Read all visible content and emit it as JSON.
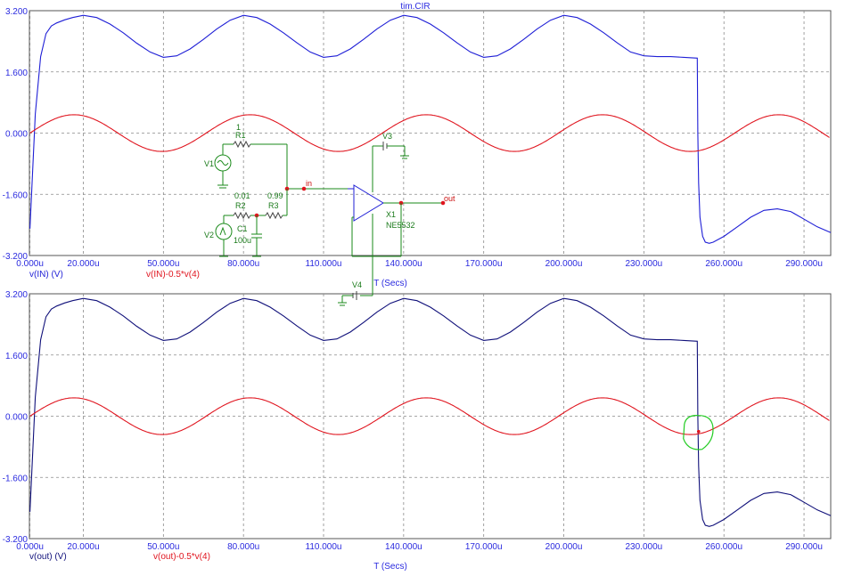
{
  "window_title": "tim.CIR",
  "colors": {
    "axis_text": "#2a2adf",
    "trace_blue": "#1f1fd6",
    "trace_navy": "#10107a",
    "trace_red": "#e0141e",
    "schematic_green": "#1a8a1a",
    "marker_green": "#22cc22",
    "grid": "#8a8a8a"
  },
  "chart_data": [
    {
      "type": "line",
      "title": "tim.CIR",
      "xlabel": "T (Secs)",
      "ylabel": "",
      "xlim": [
        -0.0002,
        0.3
      ],
      "ylim": [
        -3.2,
        3.2
      ],
      "x_tick_labels": [
        "0.000u",
        "20.000u",
        "50.000u",
        "80.000u",
        "110.000u",
        "140.000u",
        "170.000u",
        "200.000u",
        "230.000u",
        "260.000u",
        "290.000u"
      ],
      "x_ticks": [
        0,
        0.02,
        0.05,
        0.08,
        0.11,
        0.14,
        0.17,
        0.2,
        0.23,
        0.26,
        0.29
      ],
      "y_tick_labels": [
        "3.200",
        "1.600",
        "0.000",
        "-1.600",
        "-3.200"
      ],
      "y_ticks": [
        3.2,
        1.6,
        0,
        -1.6,
        -3.2
      ],
      "grid": true,
      "series": [
        {
          "name": "v(IN) (V)",
          "color": "#1f1fd6",
          "x": [
            0,
            0.002,
            0.004,
            0.006,
            0.008,
            0.01,
            0.013,
            0.016,
            0.02,
            0.025,
            0.03,
            0.035,
            0.04,
            0.045,
            0.05,
            0.055,
            0.06,
            0.065,
            0.07,
            0.075,
            0.08,
            0.085,
            0.09,
            0.095,
            0.1,
            0.105,
            0.11,
            0.115,
            0.12,
            0.125,
            0.13,
            0.135,
            0.14,
            0.145,
            0.15,
            0.155,
            0.16,
            0.165,
            0.17,
            0.175,
            0.18,
            0.185,
            0.19,
            0.195,
            0.2,
            0.205,
            0.21,
            0.215,
            0.22,
            0.225,
            0.23,
            0.235,
            0.24,
            0.245,
            0.25,
            0.2502,
            0.2505,
            0.251,
            0.252,
            0.253,
            0.2545,
            0.256,
            0.26,
            0.265,
            0.27,
            0.275,
            0.28,
            0.285,
            0.29,
            0.295,
            0.3
          ],
          "y": [
            -2.5,
            0.5,
            2.0,
            2.6,
            2.8,
            2.88,
            2.96,
            3.02,
            3.08,
            3.02,
            2.85,
            2.62,
            2.35,
            2.12,
            1.98,
            2.02,
            2.2,
            2.45,
            2.72,
            2.95,
            3.08,
            3.02,
            2.85,
            2.62,
            2.36,
            2.12,
            1.98,
            2.02,
            2.2,
            2.45,
            2.72,
            2.95,
            3.08,
            3.02,
            2.85,
            2.62,
            2.36,
            2.12,
            1.98,
            2.02,
            2.2,
            2.45,
            2.72,
            2.95,
            3.08,
            3.02,
            2.85,
            2.62,
            2.36,
            2.12,
            2.02,
            2.0,
            2.0,
            1.98,
            1.96,
            0.0,
            -1.3,
            -2.2,
            -2.7,
            -2.85,
            -2.88,
            -2.85,
            -2.7,
            -2.45,
            -2.2,
            -2.02,
            -1.98,
            -2.05,
            -2.25,
            -2.45,
            -2.6
          ]
        },
        {
          "name": "v(IN)-0.5*v(4)",
          "color": "#e0141e",
          "func": "sine",
          "amplitude": 0.48,
          "period": 0.066,
          "offset": 0,
          "phase_start": 0
        }
      ]
    },
    {
      "type": "line",
      "title": "",
      "xlabel": "T (Secs)",
      "ylabel": "",
      "xlim": [
        -0.0002,
        0.3
      ],
      "ylim": [
        -3.2,
        3.2
      ],
      "x_tick_labels": [
        "0.000u",
        "20.000u",
        "50.000u",
        "80.000u",
        "110.000u",
        "140.000u",
        "170.000u",
        "200.000u",
        "230.000u",
        "260.000u",
        "290.000u"
      ],
      "x_ticks": [
        0,
        0.02,
        0.05,
        0.08,
        0.11,
        0.14,
        0.17,
        0.2,
        0.23,
        0.26,
        0.29
      ],
      "y_tick_labels": [
        "3.200",
        "1.600",
        "0.000",
        "-1.600",
        "-3.200"
      ],
      "y_ticks": [
        3.2,
        1.6,
        0,
        -1.6,
        -3.2
      ],
      "grid": true,
      "series": [
        {
          "name": "v(out) (V)",
          "color": "#10107a",
          "x": [
            0,
            0.002,
            0.004,
            0.006,
            0.008,
            0.01,
            0.013,
            0.016,
            0.02,
            0.025,
            0.03,
            0.035,
            0.04,
            0.045,
            0.05,
            0.055,
            0.06,
            0.065,
            0.07,
            0.075,
            0.08,
            0.085,
            0.09,
            0.095,
            0.1,
            0.105,
            0.11,
            0.115,
            0.12,
            0.125,
            0.13,
            0.135,
            0.14,
            0.145,
            0.15,
            0.155,
            0.16,
            0.165,
            0.17,
            0.175,
            0.18,
            0.185,
            0.19,
            0.195,
            0.2,
            0.205,
            0.21,
            0.215,
            0.22,
            0.225,
            0.23,
            0.235,
            0.24,
            0.245,
            0.25,
            0.2502,
            0.2505,
            0.251,
            0.252,
            0.253,
            0.2545,
            0.256,
            0.26,
            0.265,
            0.27,
            0.275,
            0.28,
            0.285,
            0.29,
            0.295,
            0.3
          ],
          "y": [
            -2.5,
            0.5,
            2.0,
            2.6,
            2.8,
            2.88,
            2.96,
            3.02,
            3.08,
            3.02,
            2.85,
            2.62,
            2.35,
            2.12,
            1.98,
            2.02,
            2.2,
            2.45,
            2.72,
            2.95,
            3.08,
            3.02,
            2.85,
            2.62,
            2.36,
            2.12,
            1.98,
            2.02,
            2.2,
            2.45,
            2.72,
            2.95,
            3.08,
            3.02,
            2.85,
            2.62,
            2.36,
            2.12,
            1.98,
            2.02,
            2.2,
            2.45,
            2.72,
            2.95,
            3.08,
            3.02,
            2.85,
            2.62,
            2.36,
            2.12,
            2.02,
            2.0,
            2.0,
            1.98,
            1.96,
            0.0,
            -1.3,
            -2.2,
            -2.7,
            -2.85,
            -2.88,
            -2.85,
            -2.7,
            -2.45,
            -2.2,
            -2.02,
            -1.98,
            -2.05,
            -2.25,
            -2.45,
            -2.6
          ]
        },
        {
          "name": "v(out)-0.5*v(4)",
          "color": "#e0141e",
          "func": "sine",
          "amplitude": 0.48,
          "period": 0.066,
          "offset": 0,
          "phase_start": 0
        }
      ],
      "annotations": [
        {
          "type": "circle-marker",
          "x": 0.2505,
          "y": -0.4
        }
      ]
    }
  ],
  "schematic": {
    "labels": {
      "r1_num": "1",
      "r1": "R1",
      "v1": "V1",
      "r2_val": "0.01",
      "r2": "R2",
      "r3_val": "0.99",
      "r3": "R3",
      "c1": "C1",
      "c1_val": "100u",
      "v2": "V2",
      "node_in": "in",
      "v3": "V3",
      "x1": "X1",
      "x1_part": "NE5532",
      "node_out": "out",
      "v4": "V4"
    }
  }
}
